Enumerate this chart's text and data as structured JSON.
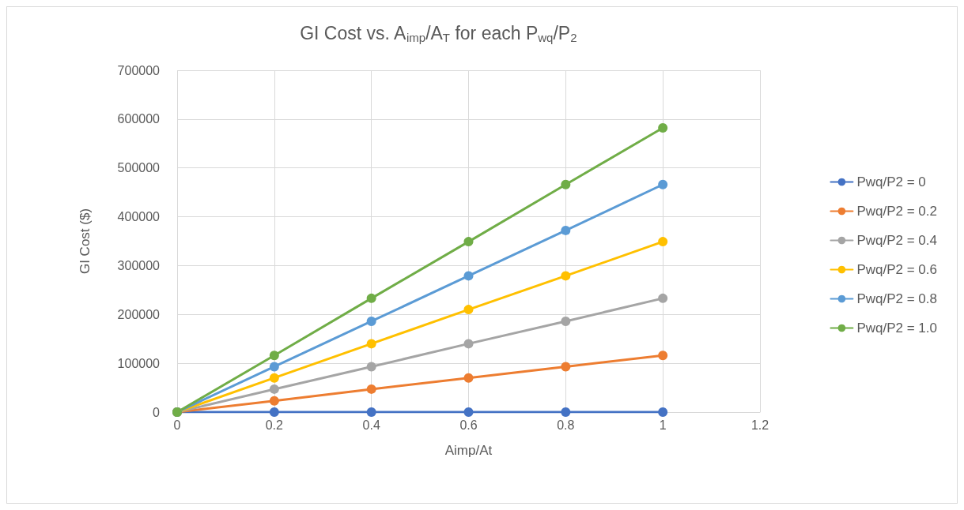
{
  "chart_data": {
    "type": "line",
    "title": "GI Cost vs. A$_{imp}$/A$_{T}$ for each P$_{wq}$/P$_{2}$",
    "xlabel": "Aimp/At",
    "ylabel": "GI Cost ($)",
    "x": [
      0,
      0.2,
      0.4,
      0.6,
      0.8,
      1
    ],
    "series": [
      {
        "name": "Pwq/P2 = 0",
        "color": "#4472c4",
        "values": [
          0,
          0,
          0,
          0,
          0,
          0
        ]
      },
      {
        "name": "Pwq/P2 = 0.2",
        "color": "#ed7d31",
        "values": [
          0,
          23000,
          47000,
          70000,
          93000,
          116000
        ]
      },
      {
        "name": "Pwq/P2 = 0.4",
        "color": "#a5a5a5",
        "values": [
          0,
          47000,
          93000,
          140000,
          186000,
          233000
        ]
      },
      {
        "name": "Pwq/P2 = 0.6",
        "color": "#ffc000",
        "values": [
          0,
          70000,
          140000,
          210000,
          279000,
          349000
        ]
      },
      {
        "name": "Pwq/P2 = 0.8",
        "color": "#5b9bd5",
        "values": [
          0,
          93000,
          186000,
          279000,
          372000,
          466000
        ]
      },
      {
        "name": "Pwq/P2 = 1.0",
        "color": "#70ad47",
        "values": [
          0,
          116000,
          233000,
          349000,
          466000,
          582000
        ]
      }
    ],
    "xlim": [
      0,
      1.2
    ],
    "xticks": [
      0,
      0.2,
      0.4,
      0.6,
      0.8,
      1,
      1.2
    ],
    "ylim": [
      0,
      700000
    ],
    "yticks": [
      0,
      100000,
      200000,
      300000,
      400000,
      500000,
      600000,
      700000
    ],
    "grid": true,
    "legend": "right",
    "marker": "circle",
    "line_style": "solid"
  }
}
